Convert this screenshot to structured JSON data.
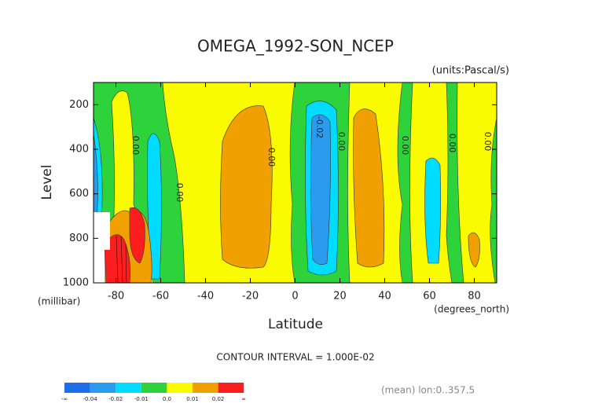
{
  "chart_data": {
    "type": "contour",
    "title": "OMEGA_1992-SON_NCEP",
    "subtitle": "(units:Pascal/s)",
    "x_label": "Latitude",
    "x_units": "(degrees_north)",
    "y_label": "Level",
    "y_units": "(millibar)",
    "xlim": [
      -90,
      90
    ],
    "ylim": [
      1000,
      100
    ],
    "xticks": [
      -80,
      -60,
      -40,
      -20,
      0,
      20,
      40,
      60,
      80
    ],
    "yticks": [
      200,
      400,
      600,
      800,
      1000
    ],
    "contour_labels": [
      {
        "value": 0,
        "label": "0.00"
      },
      -0.02
    ],
    "contour_interval": "CONTOUR INTERVAL = 1.000E-02",
    "note": "(mean) lon:0..357.5",
    "colorbar": {
      "labels": [
        "-∞",
        "-0.04",
        "-0.02",
        "-0.01",
        "0.0",
        "0.01",
        "0.02",
        "∞"
      ],
      "colors": [
        "#1e6eeb",
        "#2b9bf0",
        "#00dcff",
        "#2ed23a",
        "#fafa00",
        "#f0a000",
        "#fa1e1e"
      ]
    }
  }
}
